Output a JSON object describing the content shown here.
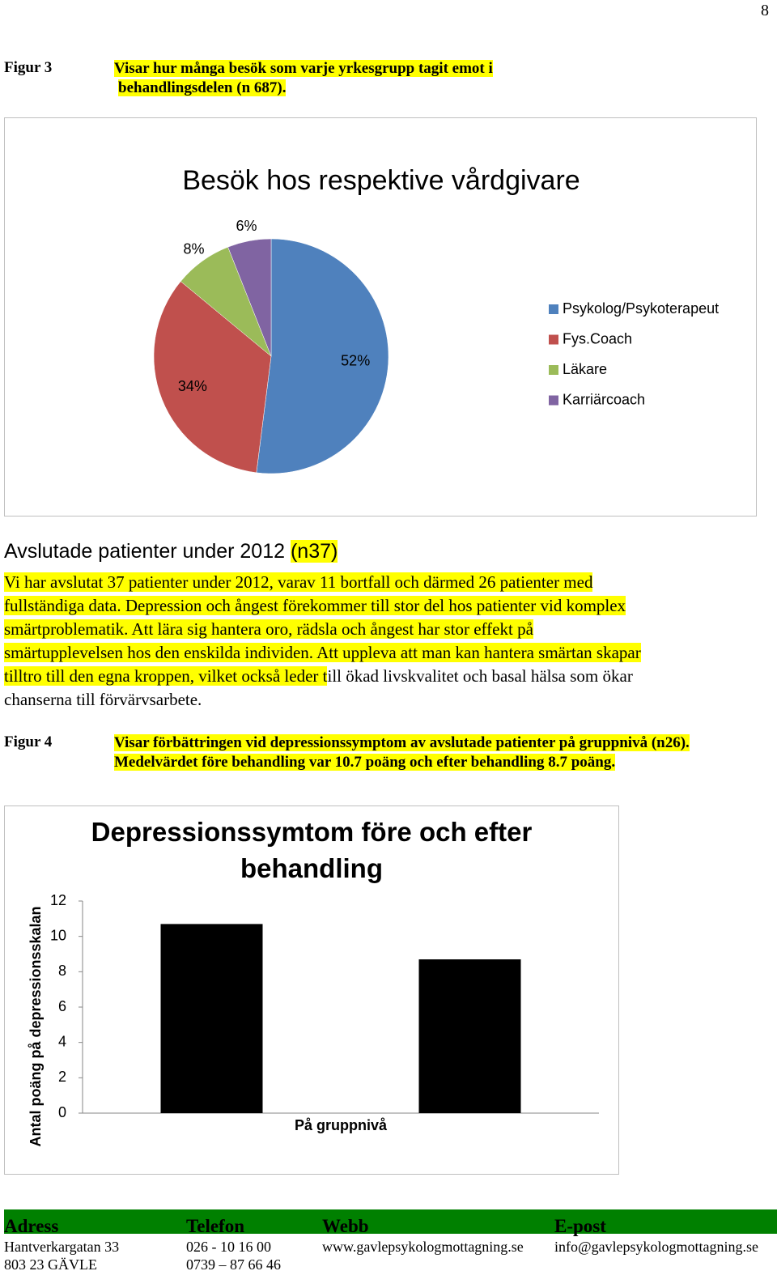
{
  "page_number": "8",
  "figure3": {
    "label": "Figur 3",
    "caption_lines": [
      "Visar hur många besök som varje yrkesgrupp tagit emot i",
      "behandlingsdelen (n 687)."
    ]
  },
  "chart_data": [
    {
      "type": "pie",
      "title": "Besök hos respektive vårdgivare",
      "categories": [
        "Psykolog/Psykoterapeut",
        "Fys.Coach",
        "Läkare",
        "Karriärcoach"
      ],
      "values": [
        52,
        34,
        8,
        6
      ],
      "value_labels": [
        "52%",
        "34%",
        "8%",
        "6%"
      ],
      "colors": [
        "#4f81bd",
        "#c0504d",
        "#9bbb59",
        "#8064a2"
      ],
      "legend": "right"
    },
    {
      "type": "bar",
      "title": "Depressionssymtom före och efter behandling",
      "xlabel": "På gruppnivå",
      "ylabel": "Antal poäng på depressionsskalan",
      "categories": [
        null,
        null
      ],
      "values": [
        10.7,
        8.7
      ],
      "color": "#000000",
      "ylim": [
        0,
        12
      ],
      "yticks": [
        0,
        2,
        4,
        6,
        8,
        10,
        12
      ],
      "grid": false
    }
  ],
  "section": {
    "heading": "Avslutade patienter under 2012 ",
    "heading_highlight": "(n37)",
    "lines": [
      [
        {
          "text": "Vi har avslutat 37 patienter under 2012, varav 11 bortfall och därmed 26 patienter med",
          "highlight": true
        }
      ],
      [
        {
          "text": "fullständiga data. Depression och ångest förekommer till stor del hos patienter vid komplex",
          "highlight": true
        }
      ],
      [
        {
          "text": "smärtproblematik. Att lära sig hantera oro, rädsla och ångest har stor effekt på",
          "highlight": true
        }
      ],
      [
        {
          "text": "smärtupplevelsen hos den enskilda individen. Att uppleva att man kan hantera smärtan skapar",
          "highlight": true
        }
      ],
      [
        {
          "text": "tilltro till den egna kroppen, vilket också leder t",
          "highlight": true
        },
        {
          "text": "ill ökad livskvalitet och basal hälsa som ökar",
          "highlight": false
        }
      ],
      [
        {
          "text": "chanserna till förvärvsarbete.",
          "highlight": false
        }
      ]
    ]
  },
  "figure4": {
    "label": "Figur 4",
    "caption_lines": [
      "Visar förbättringen vid depressionssymptom av avslutade patienter på gruppnivå (n26).",
      "Medelvärdet före behandling var 10.7 poäng och efter behandling 8.7 poäng."
    ]
  },
  "footer": {
    "columns": [
      {
        "heading": "Adress",
        "lines": [
          "Hantverkargatan 33",
          "803 23  GÄVLE"
        ]
      },
      {
        "heading": "Telefon",
        "lines": [
          "026 - 10 16 00",
          "0739 – 87 66 46"
        ]
      },
      {
        "heading": "Webb",
        "lines": [
          "www.gavlepsykologmottagning.se"
        ]
      },
      {
        "heading": "E-post",
        "lines": [
          "info@gavlepsykologmottagning.se"
        ]
      }
    ]
  }
}
